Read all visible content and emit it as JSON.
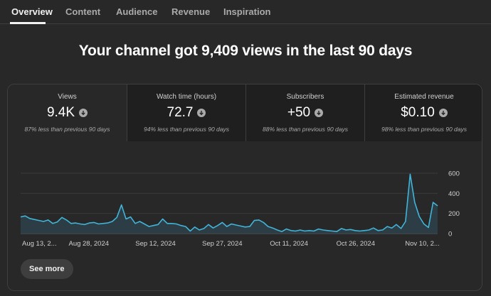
{
  "tabs": [
    {
      "label": "Overview",
      "active": true
    },
    {
      "label": "Content",
      "active": false
    },
    {
      "label": "Audience",
      "active": false
    },
    {
      "label": "Revenue",
      "active": false
    },
    {
      "label": "Inspiration",
      "active": false
    }
  ],
  "headline": "Your channel got 9,409 views in the last 90 days",
  "metrics": [
    {
      "label": "Views",
      "value": "9.4K",
      "trend_icon": "arrow-down-circle-icon",
      "note": "87% less than previous 90 days"
    },
    {
      "label": "Watch time (hours)",
      "value": "72.7",
      "trend_icon": "arrow-down-circle-icon",
      "note": "94% less than previous 90 days"
    },
    {
      "label": "Subscribers",
      "value": "+50",
      "trend_icon": "arrow-down-circle-icon",
      "note": "88% less than previous 90 days"
    },
    {
      "label": "Estimated revenue",
      "value": "$0.10",
      "trend_icon": "arrow-down-circle-icon",
      "note": "98% less than previous 90 days"
    }
  ],
  "colors": {
    "line": "#3ea6ff",
    "line_light": "#41b4d9",
    "area": "#2c3f48"
  },
  "chart_data": {
    "type": "area",
    "x_tick_labels": [
      "Aug 13, 2...",
      "Aug 28, 2024",
      "Sep 12, 2024",
      "Sep 27, 2024",
      "Oct 11, 2024",
      "Oct 26, 2024",
      "Nov 10, 2..."
    ],
    "y_tick_labels": [
      "600",
      "400",
      "200",
      "0"
    ],
    "ylim": [
      0,
      600
    ],
    "grid": true,
    "series": [
      {
        "values": [
          165,
          175,
          150,
          140,
          130,
          120,
          135,
          100,
          115,
          160,
          135,
          100,
          105,
          95,
          90,
          105,
          110,
          95,
          100,
          105,
          120,
          160,
          285,
          145,
          165,
          100,
          120,
          95,
          70,
          80,
          90,
          145,
          100,
          100,
          95,
          80,
          70,
          25,
          65,
          35,
          50,
          90,
          55,
          80,
          110,
          70,
          95,
          85,
          75,
          65,
          70,
          130,
          135,
          110,
          70,
          55,
          35,
          20,
          45,
          30,
          25,
          35,
          25,
          30,
          25,
          45,
          35,
          30,
          25,
          20,
          50,
          35,
          40,
          30,
          25,
          30,
          35,
          55,
          30,
          35,
          70,
          55,
          90,
          50,
          120,
          590,
          310,
          170,
          95,
          60,
          310,
          275
        ]
      }
    ]
  },
  "see_more_label": "See more"
}
